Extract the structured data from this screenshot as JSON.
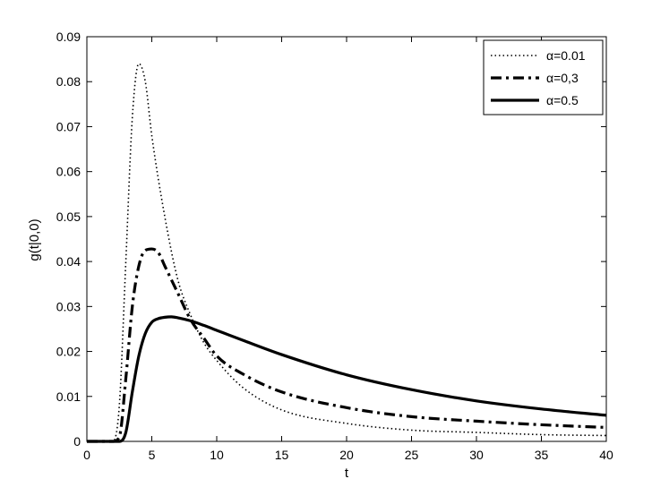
{
  "chart_data": {
    "type": "line",
    "xlabel": "t",
    "ylabel": "g(t|0,0)",
    "xlim": [
      0,
      40
    ],
    "ylim": [
      0,
      0.09
    ],
    "x_ticks": [
      "0",
      "5",
      "10",
      "15",
      "20",
      "25",
      "30",
      "35",
      "40"
    ],
    "y_ticks": [
      "0",
      "0.01",
      "0.02",
      "0.03",
      "0.04",
      "0.05",
      "0.06",
      "0.07",
      "0.08",
      "0.09"
    ],
    "grid": false,
    "legend_position": "top-right",
    "series": [
      {
        "name": "α=0.01",
        "style": "dotted",
        "color": "#000000",
        "x": [
          0,
          2.0,
          2.5,
          3.0,
          3.5,
          4.0,
          4.5,
          5.0,
          6.0,
          7.0,
          8.0,
          9.0,
          10.0,
          12.0,
          15.0,
          20.0,
          25.0,
          30.0,
          35.0,
          40.0
        ],
        "y": [
          0,
          0,
          0.008,
          0.04,
          0.072,
          0.084,
          0.08,
          0.068,
          0.05,
          0.036,
          0.028,
          0.022,
          0.018,
          0.012,
          0.007,
          0.004,
          0.0025,
          0.002,
          0.0015,
          0.0013
        ]
      },
      {
        "name": "α=0,3",
        "style": "dash-dot",
        "color": "#000000",
        "x": [
          0,
          2.0,
          2.5,
          3.0,
          3.5,
          4.0,
          4.5,
          5.0,
          5.5,
          6.0,
          7.0,
          8.0,
          9.0,
          10.0,
          12.0,
          15.0,
          20.0,
          25.0,
          30.0,
          35.0,
          40.0
        ],
        "y": [
          0,
          0,
          0.001,
          0.014,
          0.03,
          0.039,
          0.0425,
          0.0428,
          0.042,
          0.039,
          0.033,
          0.027,
          0.023,
          0.019,
          0.015,
          0.011,
          0.0075,
          0.0055,
          0.0045,
          0.0037,
          0.0031
        ]
      },
      {
        "name": "α=0.5",
        "style": "solid",
        "color": "#000000",
        "x": [
          0,
          2.5,
          3.0,
          3.5,
          4.0,
          4.5,
          5.0,
          5.5,
          6.0,
          6.5,
          7.0,
          8.0,
          9.0,
          10.0,
          12.0,
          15.0,
          20.0,
          25.0,
          30.0,
          35.0,
          40.0
        ],
        "y": [
          0,
          0,
          0.002,
          0.011,
          0.019,
          0.024,
          0.0265,
          0.0273,
          0.0276,
          0.0277,
          0.0275,
          0.0268,
          0.0258,
          0.0247,
          0.0225,
          0.0193,
          0.0148,
          0.0115,
          0.009,
          0.0072,
          0.0058
        ]
      }
    ]
  }
}
